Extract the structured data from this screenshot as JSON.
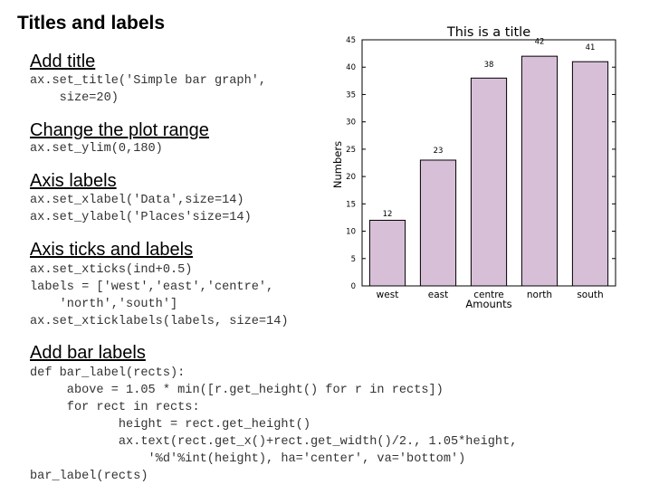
{
  "slide": {
    "title": "Titles and labels",
    "sections": [
      {
        "heading": "Add title",
        "code": [
          "ax.set_title('Simple bar graph',",
          "    size=20)"
        ]
      },
      {
        "heading": "Change the plot range",
        "code": [
          "ax.set_ylim(0,180)"
        ]
      },
      {
        "heading": "Axis labels",
        "code": [
          "ax.set_xlabel('Data',size=14)",
          "ax.set_ylabel('Places'size=14)"
        ]
      },
      {
        "heading": "Axis ticks and labels",
        "code": [
          "ax.set_xticks(ind+0.5)",
          "labels = ['west','east','centre',",
          "    'north','south']",
          "ax.set_xticklabels(labels, size=14)"
        ]
      },
      {
        "heading": "Add bar labels",
        "code": [
          "def bar_label(rects):",
          "     above = 1.05 * min([r.get_height() for r in rects])",
          "     for rect in rects:",
          "            height = rect.get_height()",
          "            ax.text(rect.get_x()+rect.get_width()/2., 1.05*height,",
          "                '%d'%int(height), ha='center', va='bottom')",
          "bar_label(rects)"
        ]
      }
    ]
  },
  "chart_data": {
    "type": "bar",
    "title": "This is a title",
    "xlabel": "Amounts",
    "ylabel": "Numbers",
    "categories": [
      "west",
      "east",
      "centre",
      "north",
      "south"
    ],
    "values": [
      12,
      23,
      38,
      42,
      41
    ],
    "data_labels": [
      "12",
      "23",
      "38",
      "42",
      "41"
    ],
    "ylim": [
      0,
      45
    ],
    "yticks": [
      0,
      5,
      10,
      15,
      20,
      25,
      30,
      35,
      40,
      45
    ],
    "grid": false,
    "bar_color": "#d8bfd8",
    "edge_color": "#000000"
  }
}
